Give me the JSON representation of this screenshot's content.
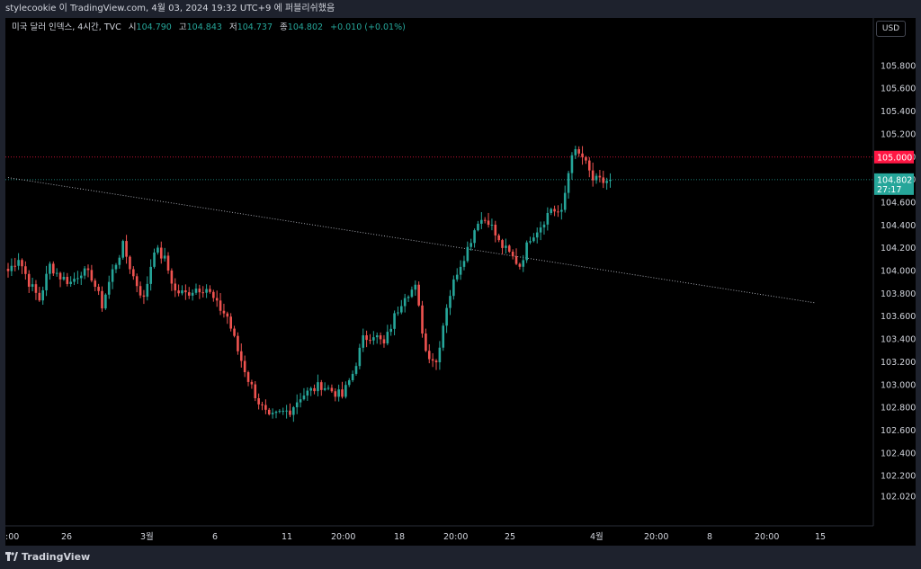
{
  "header": {
    "text": "stylecookie 이 TradingView.com, 4월 03, 2024 19:32 UTC+9 에 퍼블리쉬했음"
  },
  "legend": {
    "symbol": "미국 달러 인덱스, 4시간, TVC",
    "open_label": "시",
    "open": "104.790",
    "high_label": "고",
    "high": "104.843",
    "low_label": "저",
    "low": "104.737",
    "close_label": "종",
    "close": "104.802",
    "change": "+0.010 (+0.01%)"
  },
  "currency_button": "USD",
  "footer": {
    "brand": "TradingView"
  },
  "chart_data": {
    "type": "candlestick",
    "symbol": "미국 달러 인덱스, 4시간, TVC",
    "currency": "USD",
    "colors": {
      "up": "#26a69a",
      "down": "#ef5350",
      "resistance": "#ff1744",
      "trendline": "#b2b5be"
    },
    "y_ticks": [
      "105.800",
      "105.600",
      "105.400",
      "105.200",
      "105.000",
      "104.800",
      "104.600",
      "104.400",
      "104.200",
      "104.000",
      "103.800",
      "103.600",
      "103.400",
      "103.200",
      "103.000",
      "102.800",
      "102.600",
      "102.400",
      "102.200",
      "102.020"
    ],
    "x_ticks": [
      ":00",
      "26",
      "3월",
      "6",
      "11",
      "20:00",
      "18",
      "20:00",
      "25",
      "4월",
      "20:00",
      "8",
      "20:00",
      "15"
    ],
    "ylim": [
      101.9,
      106.0
    ],
    "horizontal_line": {
      "value": 105.0,
      "label": "105.000"
    },
    "trendline": {
      "start": {
        "bar": 0,
        "value": 104.82
      },
      "end": {
        "bar": 232,
        "value": 103.72
      }
    },
    "last_price": {
      "value": 104.802,
      "label": "104.802",
      "countdown": "27:17"
    },
    "price_path": [
      [
        0,
        104.0
      ],
      [
        3,
        104.12
      ],
      [
        6,
        103.9
      ],
      [
        9,
        103.75
      ],
      [
        12,
        104.05
      ],
      [
        15,
        103.95
      ],
      [
        18,
        103.9
      ],
      [
        21,
        104.0
      ],
      [
        24,
        103.95
      ],
      [
        27,
        103.7
      ],
      [
        30,
        104.0
      ],
      [
        33,
        104.22
      ],
      [
        36,
        103.95
      ],
      [
        39,
        103.75
      ],
      [
        42,
        104.2
      ],
      [
        45,
        104.1
      ],
      [
        48,
        103.82
      ],
      [
        51,
        103.8
      ],
      [
        54,
        103.85
      ],
      [
        57,
        103.85
      ],
      [
        60,
        103.7
      ],
      [
        63,
        103.6
      ],
      [
        66,
        103.3
      ],
      [
        69,
        103.05
      ],
      [
        72,
        102.85
      ],
      [
        75,
        102.7
      ],
      [
        78,
        102.75
      ],
      [
        81,
        102.78
      ],
      [
        84,
        102.9
      ],
      [
        87,
        102.95
      ],
      [
        90,
        103.0
      ],
      [
        93,
        102.95
      ],
      [
        96,
        102.9
      ],
      [
        99,
        103.1
      ],
      [
        102,
        103.4
      ],
      [
        105,
        103.45
      ],
      [
        108,
        103.35
      ],
      [
        111,
        103.6
      ],
      [
        114,
        103.8
      ],
      [
        117,
        103.85
      ],
      [
        120,
        103.3
      ],
      [
        123,
        103.2
      ],
      [
        126,
        103.7
      ],
      [
        129,
        104.0
      ],
      [
        132,
        104.2
      ],
      [
        135,
        104.45
      ],
      [
        138,
        104.45
      ],
      [
        141,
        104.25
      ],
      [
        144,
        104.15
      ],
      [
        147,
        104.05
      ],
      [
        150,
        104.3
      ],
      [
        153,
        104.4
      ],
      [
        156,
        104.55
      ],
      [
        159,
        104.5
      ],
      [
        162,
        105.05
      ],
      [
        165,
        105.0
      ],
      [
        168,
        104.8
      ],
      [
        171,
        104.78
      ],
      [
        173,
        104.802
      ]
    ]
  }
}
